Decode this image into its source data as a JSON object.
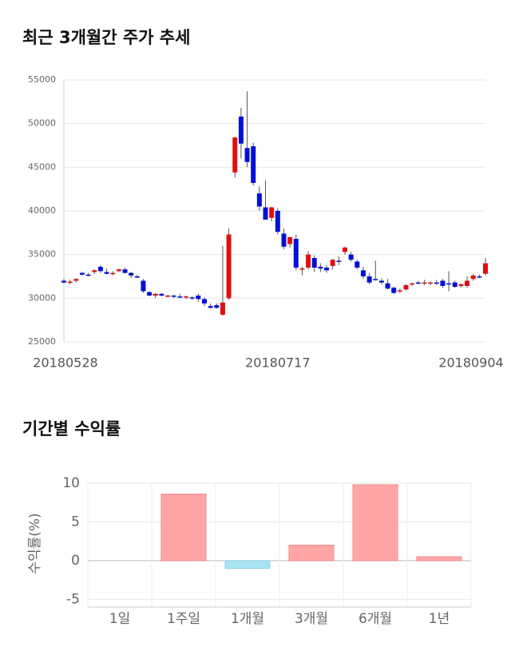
{
  "charts": [
    {
      "type": "candlestick",
      "title": "최근 3개월간 주가 추세",
      "categories": [
        "20180528",
        null,
        null,
        null,
        null,
        null,
        null,
        null,
        null,
        null,
        null,
        null,
        null,
        null,
        null,
        null,
        null,
        null,
        null,
        null,
        null,
        null,
        null,
        null,
        null,
        null,
        null,
        null,
        null,
        null,
        null,
        null,
        null,
        null,
        null,
        "20180717",
        null,
        null,
        null,
        null,
        null,
        null,
        null,
        null,
        null,
        null,
        null,
        null,
        null,
        null,
        null,
        null,
        null,
        null,
        null,
        null,
        null,
        null,
        null,
        null,
        null,
        null,
        null,
        null,
        null,
        null,
        null,
        null,
        null,
        "20180904"
      ],
      "open": [
        32000,
        31800,
        32000,
        32900,
        32700,
        33000,
        33600,
        33000,
        32800,
        33100,
        33300,
        32900,
        32500,
        32000,
        30700,
        30300,
        30500,
        30200,
        30300,
        30200,
        30100,
        30100,
        30300,
        29900,
        29100,
        29200,
        28100,
        30000,
        44400,
        50800,
        47200,
        47400,
        42000,
        40400,
        39200,
        40000,
        37400,
        36200,
        36800,
        33400,
        33500,
        34600,
        33600,
        33500,
        33700,
        34300,
        35300,
        35000,
        34200,
        33200,
        32500,
        32200,
        32000,
        31700,
        31200,
        30800,
        31000,
        31600,
        31800,
        31700,
        31700,
        31800,
        32000,
        31700,
        31800,
        31400,
        31400,
        32200,
        32500,
        32800
      ],
      "high": [
        32200,
        32100,
        32300,
        33000,
        32900,
        33300,
        33800,
        33400,
        33100,
        33400,
        33500,
        33000,
        32700,
        32200,
        30800,
        30600,
        30600,
        30400,
        30400,
        30500,
        30300,
        30200,
        30500,
        30100,
        29400,
        29400,
        36000,
        38000,
        48500,
        51800,
        53700,
        47800,
        42800,
        43500,
        40500,
        40300,
        38000,
        37000,
        37300,
        33600,
        35400,
        34900,
        34000,
        33800,
        34500,
        34800,
        35900,
        35300,
        34400,
        33600,
        32900,
        34300,
        32300,
        32200,
        31300,
        31100,
        31600,
        31800,
        32000,
        32100,
        31900,
        32100,
        32200,
        33100,
        32000,
        31700,
        32500,
        32800,
        32700,
        34600
      ],
      "low": [
        31700,
        31600,
        31800,
        32600,
        32500,
        32800,
        32900,
        32700,
        32600,
        33000,
        32800,
        32300,
        32300,
        30600,
        30200,
        30000,
        30200,
        30100,
        30000,
        30000,
        29900,
        29800,
        29600,
        29100,
        28800,
        28800,
        28000,
        29800,
        43800,
        46000,
        45000,
        42900,
        40000,
        39000,
        38800,
        37300,
        35600,
        35800,
        33200,
        32600,
        33300,
        33000,
        33000,
        32900,
        33300,
        33800,
        35000,
        34200,
        33300,
        32200,
        31600,
        32000,
        31600,
        31000,
        30500,
        30600,
        30900,
        31400,
        31600,
        31500,
        31500,
        31500,
        31200,
        30800,
        31200,
        31200,
        31200,
        32000,
        32300,
        32600
      ],
      "close": [
        31800,
        31900,
        32200,
        32700,
        32600,
        33200,
        33100,
        32800,
        32900,
        33300,
        32900,
        32600,
        32400,
        30800,
        30300,
        30500,
        30300,
        30300,
        30200,
        30100,
        30200,
        30000,
        29900,
        29400,
        28900,
        28900,
        29500,
        37300,
        48400,
        47700,
        45600,
        43200,
        40500,
        39000,
        40400,
        37600,
        35900,
        37000,
        33500,
        33400,
        35000,
        33500,
        33400,
        33200,
        34400,
        34200,
        35800,
        34400,
        33500,
        32500,
        31800,
        32100,
        31800,
        31100,
        30600,
        30900,
        31500,
        31700,
        31700,
        31800,
        31800,
        31700,
        31400,
        31600,
        31300,
        31600,
        32000,
        32600,
        32400,
        34000
      ],
      "up_color": "#e01010",
      "down_color": "#0010d8",
      "ylim": [
        25000,
        55000
      ],
      "yticks": [
        25000,
        30000,
        35000,
        40000,
        45000,
        50000,
        55000
      ],
      "grid": true
    },
    {
      "type": "bar",
      "title": "기간별 수익률",
      "ylabel": "수익률(%)",
      "categories": [
        "1일",
        "1주일",
        "1개월",
        "3개월",
        "6개월",
        "1년"
      ],
      "values": [
        0,
        8.6,
        -1.0,
        2.0,
        9.8,
        0.5
      ],
      "pos_color": "#ffa5a5",
      "neg_color": "#a7e3f2",
      "ylim": [
        -6,
        10
      ],
      "yticks": [
        -5,
        0,
        5,
        10
      ],
      "grid": true
    }
  ]
}
